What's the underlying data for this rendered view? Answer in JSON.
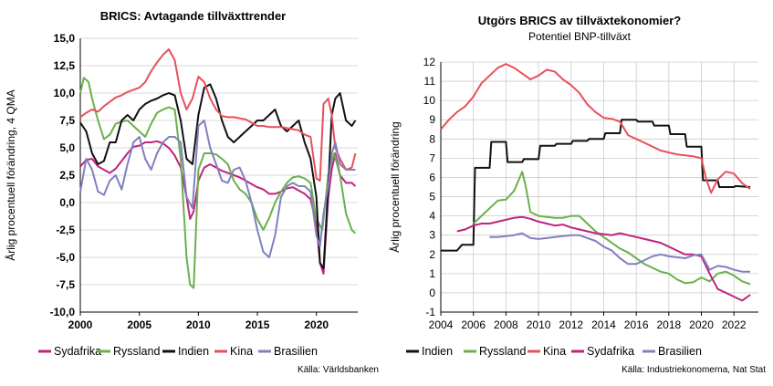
{
  "chart_data": [
    {
      "type": "line",
      "title": "BRICS: Avtagande tillväxttrender",
      "ylabel": "Årlig procentuell förändring, 4 QMA",
      "xlim": [
        2000,
        2023.5
      ],
      "ylim": [
        -10,
        15
      ],
      "x_ticks": [
        "2000",
        "2005",
        "2010",
        "2015",
        "2020"
      ],
      "x_tick_values": [
        2000,
        2005,
        2010,
        2015,
        2020
      ],
      "y_ticks": [
        "15,0",
        "12,5",
        "10,0",
        "7,5",
        "5,0",
        "2,5",
        "0,0",
        "-2,5",
        "-5,0",
        "-7,5",
        "-10,0"
      ],
      "y_tick_values": [
        15,
        12.5,
        10,
        7.5,
        5,
        2.5,
        0,
        -2.5,
        -5,
        -7.5,
        -10
      ],
      "grid": true,
      "legend_position": "bottom",
      "source": "Källa: Världsbanken",
      "series": [
        {
          "name": "Sydafrika",
          "color": "#c0237d",
          "x": [
            2000,
            2000.5,
            2001,
            2001.5,
            2002,
            2002.5,
            2003,
            2003.5,
            2004,
            2004.5,
            2005,
            2005.5,
            2006,
            2006.5,
            2007,
            2007.5,
            2008,
            2008.5,
            2009,
            2009.3,
            2009.6,
            2010,
            2010.5,
            2011,
            2011.5,
            2012,
            2012.5,
            2013,
            2013.5,
            2014,
            2014.5,
            2015,
            2015.5,
            2016,
            2016.5,
            2017,
            2017.5,
            2018,
            2018.5,
            2019,
            2019.5,
            2020,
            2020.3,
            2020.6,
            2021,
            2021.3,
            2021.6,
            2022,
            2022.5,
            2023,
            2023.3
          ],
          "y": [
            3.3,
            3.9,
            4.0,
            3.3,
            3.0,
            2.7,
            3.1,
            3.8,
            4.5,
            5.1,
            5.2,
            5.5,
            5.5,
            5.6,
            5.4,
            5.0,
            4.3,
            3.2,
            0.5,
            -1.5,
            -0.8,
            2.0,
            3.2,
            3.5,
            3.2,
            2.9,
            2.7,
            2.5,
            2.3,
            2.0,
            1.7,
            1.4,
            1.2,
            0.8,
            0.8,
            1.0,
            1.3,
            1.4,
            1.1,
            0.8,
            0.3,
            -2.0,
            -5.5,
            -6.5,
            0.5,
            3.0,
            4.5,
            2.5,
            1.8,
            1.8,
            1.5
          ]
        },
        {
          "name": "Ryssland",
          "color": "#6ab04c",
          "x": [
            2000,
            2000.3,
            2000.7,
            2001,
            2001.5,
            2002,
            2002.5,
            2003,
            2003.5,
            2004,
            2004.5,
            2005,
            2005.5,
            2006,
            2006.5,
            2007,
            2007.5,
            2008,
            2008.5,
            2009,
            2009.3,
            2009.6,
            2010,
            2010.5,
            2011,
            2011.5,
            2012,
            2012.5,
            2013,
            2013.5,
            2014,
            2014.5,
            2015,
            2015.5,
            2016,
            2016.5,
            2017,
            2017.5,
            2018,
            2018.5,
            2019,
            2019.5,
            2020,
            2020.5,
            2021,
            2021.5,
            2022,
            2022.5,
            2023,
            2023.3
          ],
          "y": [
            10.0,
            11.4,
            11.0,
            9.5,
            7.5,
            5.8,
            6.2,
            7.2,
            7.4,
            7.5,
            7.0,
            6.5,
            6.0,
            7.2,
            8.2,
            8.5,
            8.7,
            8.5,
            4.0,
            -5.0,
            -7.5,
            -7.8,
            3.0,
            4.5,
            4.5,
            4.4,
            4.0,
            3.5,
            2.0,
            1.2,
            0.8,
            0.0,
            -1.5,
            -2.5,
            -1.4,
            0.0,
            1.0,
            1.8,
            2.3,
            2.4,
            2.2,
            1.8,
            -1.5,
            -2.5,
            2.5,
            4.5,
            2.5,
            -1.0,
            -2.5,
            -2.8
          ]
        },
        {
          "name": "Indien",
          "color": "#111111",
          "x": [
            2000,
            2000.5,
            2001,
            2001.5,
            2002,
            2002.5,
            2003,
            2003.5,
            2004,
            2004.5,
            2005,
            2005.5,
            2006,
            2006.5,
            2007,
            2007.5,
            2008,
            2008.5,
            2009,
            2009.5,
            2010,
            2010.5,
            2011,
            2011.5,
            2012,
            2012.5,
            2013,
            2013.5,
            2014,
            2014.5,
            2015,
            2015.5,
            2016,
            2016.5,
            2017,
            2017.5,
            2018,
            2018.5,
            2019,
            2019.5,
            2020,
            2020.3,
            2020.6,
            2021,
            2021.3,
            2021.6,
            2022,
            2022.5,
            2023,
            2023.3
          ],
          "y": [
            7.3,
            6.5,
            4.5,
            3.5,
            3.8,
            5.5,
            5.5,
            7.5,
            8.0,
            7.5,
            8.5,
            9.0,
            9.3,
            9.5,
            9.8,
            10.0,
            9.8,
            7.5,
            4.0,
            3.5,
            8.0,
            10.5,
            10.8,
            9.5,
            7.5,
            6.0,
            5.5,
            6.0,
            6.5,
            7.0,
            7.5,
            7.5,
            8.0,
            8.5,
            7.0,
            6.5,
            7.0,
            7.5,
            5.5,
            4.0,
            0.5,
            -5.5,
            -6.0,
            1.5,
            8.0,
            9.5,
            10.0,
            7.5,
            7.0,
            7.5
          ]
        },
        {
          "name": "Kina",
          "color": "#e8505b",
          "x": [
            2000,
            2000.5,
            2001,
            2001.5,
            2002,
            2002.5,
            2003,
            2003.5,
            2004,
            2004.5,
            2005,
            2005.5,
            2006,
            2006.5,
            2007,
            2007.5,
            2008,
            2008.5,
            2009,
            2009.5,
            2010,
            2010.5,
            2011,
            2011.5,
            2012,
            2012.5,
            2013,
            2013.5,
            2014,
            2014.5,
            2015,
            2015.5,
            2016,
            2016.5,
            2017,
            2017.5,
            2018,
            2018.5,
            2019,
            2019.5,
            2020,
            2020.3,
            2020.6,
            2021,
            2021.3,
            2021.6,
            2022,
            2022.5,
            2023,
            2023.3
          ],
          "y": [
            7.8,
            8.2,
            8.5,
            8.3,
            8.8,
            9.2,
            9.6,
            9.8,
            10.1,
            10.3,
            10.5,
            11.0,
            12.0,
            12.8,
            13.5,
            14.0,
            13.0,
            10.0,
            8.5,
            9.5,
            11.5,
            11.0,
            9.5,
            8.5,
            7.9,
            7.8,
            7.8,
            7.7,
            7.6,
            7.3,
            7.0,
            7.0,
            6.9,
            6.9,
            6.9,
            6.8,
            6.7,
            6.6,
            6.2,
            6.0,
            2.2,
            2.0,
            9.0,
            9.5,
            8.0,
            5.0,
            4.0,
            3.0,
            3.2,
            4.5
          ]
        },
        {
          "name": "Brasilien",
          "color": "#8080c0",
          "x": [
            2000,
            2000.5,
            2001,
            2001.5,
            2002,
            2002.5,
            2003,
            2003.5,
            2004,
            2004.5,
            2005,
            2005.5,
            2006,
            2006.5,
            2007,
            2007.5,
            2008,
            2008.5,
            2009,
            2009.5,
            2010,
            2010.5,
            2011,
            2011.5,
            2012,
            2012.5,
            2013,
            2013.5,
            2014,
            2014.5,
            2015,
            2015.5,
            2016,
            2016.5,
            2017,
            2017.5,
            2018,
            2018.5,
            2019,
            2019.5,
            2020,
            2020.3,
            2020.6,
            2021,
            2021.3,
            2021.6,
            2022,
            2022.5,
            2023,
            2023.3
          ],
          "y": [
            1.0,
            4.0,
            3.0,
            1.0,
            0.7,
            2.0,
            2.5,
            1.2,
            3.5,
            5.5,
            6.0,
            4.0,
            3.0,
            4.5,
            5.5,
            6.0,
            6.0,
            5.5,
            0.5,
            -0.5,
            7.0,
            7.5,
            5.0,
            3.5,
            2.0,
            1.8,
            3.0,
            3.2,
            2.0,
            0.0,
            -2.5,
            -4.5,
            -5.0,
            -3.0,
            0.5,
            1.5,
            1.8,
            1.5,
            1.5,
            1.0,
            -3.0,
            -4.0,
            -1.0,
            1.5,
            4.5,
            5.5,
            3.5,
            3.0,
            3.0,
            3.0
          ]
        }
      ]
    },
    {
      "type": "line",
      "title": "Utgörs BRICS av tillväxtekonomier?",
      "subtitle": "Potentiel BNP-tillväxt",
      "ylabel": "Årlig procentuell förändring",
      "xlim": [
        2004,
        2023.5
      ],
      "ylim": [
        -1,
        12
      ],
      "x_ticks": [
        "2004",
        "2006",
        "2008",
        "2010",
        "2012",
        "2014",
        "2016",
        "2018",
        "2020",
        "2022"
      ],
      "x_tick_values": [
        2004,
        2006,
        2008,
        2010,
        2012,
        2014,
        2016,
        2018,
        2020,
        2022
      ],
      "y_ticks": [
        "12",
        "11",
        "10",
        "9",
        "8",
        "7",
        "6",
        "5",
        "4",
        "3",
        "2",
        "1",
        "0",
        "-1"
      ],
      "y_tick_values": [
        12,
        11,
        10,
        9,
        8,
        7,
        6,
        5,
        4,
        3,
        2,
        1,
        0,
        -1
      ],
      "grid": true,
      "legend_position": "bottom",
      "source": "Källa: Industriekonomerna, Nat Stat",
      "series": [
        {
          "name": "Indien",
          "color": "#111111",
          "step": true,
          "x": [
            2004,
            2005,
            2005.3,
            2006,
            2006.1,
            2007,
            2007.1,
            2008,
            2008.1,
            2009,
            2009.1,
            2010,
            2010.1,
            2011,
            2011.1,
            2012,
            2012.1,
            2013,
            2013.1,
            2014,
            2014.1,
            2015,
            2015.1,
            2016,
            2016.1,
            2017,
            2017.1,
            2018,
            2018.1,
            2019,
            2019.1,
            2020,
            2020.1,
            2021,
            2021.1,
            2022,
            2022.1,
            2023
          ],
          "y": [
            2.2,
            2.2,
            2.5,
            2.5,
            6.5,
            6.5,
            7.85,
            7.85,
            6.8,
            6.8,
            6.95,
            6.95,
            7.65,
            7.65,
            7.75,
            7.75,
            7.9,
            7.9,
            8.0,
            8.0,
            8.3,
            8.3,
            9.0,
            9.0,
            8.9,
            8.9,
            8.7,
            8.7,
            8.25,
            8.25,
            7.6,
            7.6,
            5.85,
            5.85,
            5.5,
            5.5,
            5.55,
            5.5
          ]
        },
        {
          "name": "Ryssland",
          "color": "#6ab04c",
          "x": [
            2006,
            2006.5,
            2007,
            2007.5,
            2008,
            2008.5,
            2009,
            2009.2,
            2009.5,
            2010,
            2010.5,
            2011,
            2011.5,
            2012,
            2012.5,
            2013,
            2013.5,
            2014,
            2014.5,
            2015,
            2015.5,
            2016,
            2016.5,
            2017,
            2017.5,
            2018,
            2018.5,
            2019,
            2019.5,
            2020,
            2020.5,
            2021,
            2021.5,
            2022,
            2022.5,
            2023
          ],
          "y": [
            3.6,
            4.0,
            4.4,
            4.8,
            4.85,
            5.3,
            6.3,
            5.6,
            4.2,
            4.0,
            3.95,
            3.9,
            3.9,
            4.0,
            4.0,
            3.6,
            3.2,
            2.9,
            2.6,
            2.3,
            2.1,
            1.8,
            1.5,
            1.3,
            1.1,
            1.0,
            0.7,
            0.5,
            0.55,
            0.8,
            0.6,
            1.0,
            1.1,
            0.9,
            0.6,
            0.45
          ]
        },
        {
          "name": "Kina",
          "color": "#e8505b",
          "x": [
            2004,
            2004.5,
            2005,
            2005.5,
            2006,
            2006.5,
            2007,
            2007.5,
            2008,
            2008.5,
            2009,
            2009.5,
            2010,
            2010.5,
            2011,
            2011.5,
            2012,
            2012.5,
            2013,
            2013.5,
            2014,
            2014.5,
            2015,
            2015.5,
            2016,
            2016.5,
            2017,
            2017.5,
            2018,
            2018.5,
            2019,
            2019.5,
            2020,
            2020.3,
            2020.6,
            2021,
            2021.5,
            2022,
            2022.5,
            2023
          ],
          "y": [
            8.5,
            9.0,
            9.4,
            9.7,
            10.2,
            10.9,
            11.3,
            11.7,
            11.9,
            11.7,
            11.4,
            11.1,
            11.3,
            11.6,
            11.5,
            11.1,
            10.8,
            10.4,
            9.8,
            9.4,
            9.1,
            9.05,
            8.9,
            8.2,
            8.0,
            7.8,
            7.6,
            7.4,
            7.3,
            7.2,
            7.15,
            7.1,
            7.0,
            5.9,
            5.2,
            5.9,
            6.3,
            6.2,
            5.7,
            5.4
          ]
        },
        {
          "name": "Sydafrika",
          "color": "#c0237d",
          "x": [
            2005,
            2005.5,
            2006,
            2006.5,
            2007,
            2007.5,
            2008,
            2008.5,
            2009,
            2009.5,
            2010,
            2010.5,
            2011,
            2011.5,
            2012,
            2012.5,
            2013,
            2013.5,
            2014,
            2014.5,
            2015,
            2015.5,
            2016,
            2016.5,
            2017,
            2017.5,
            2018,
            2018.5,
            2019,
            2019.5,
            2020,
            2020.5,
            2021,
            2021.5,
            2022,
            2022.5,
            2023
          ],
          "y": [
            3.2,
            3.3,
            3.5,
            3.6,
            3.6,
            3.7,
            3.8,
            3.9,
            3.95,
            3.85,
            3.7,
            3.6,
            3.5,
            3.55,
            3.4,
            3.3,
            3.2,
            3.1,
            3.05,
            3.0,
            3.1,
            3.0,
            2.9,
            2.8,
            2.7,
            2.6,
            2.4,
            2.2,
            2.0,
            2.0,
            1.9,
            1.0,
            0.2,
            0.0,
            -0.2,
            -0.4,
            -0.1
          ]
        },
        {
          "name": "Brasilien",
          "color": "#8080c0",
          "x": [
            2007,
            2007.5,
            2008,
            2008.5,
            2009,
            2009.5,
            2010,
            2010.5,
            2011,
            2011.5,
            2012,
            2012.5,
            2013,
            2013.5,
            2014,
            2014.5,
            2015,
            2015.5,
            2016,
            2016.5,
            2017,
            2017.5,
            2018,
            2018.5,
            2019,
            2019.5,
            2020,
            2020.5,
            2021,
            2021.5,
            2022,
            2022.5,
            2023
          ],
          "y": [
            2.9,
            2.9,
            2.95,
            3.0,
            3.1,
            2.85,
            2.8,
            2.85,
            2.9,
            2.95,
            3.0,
            3.0,
            2.85,
            2.7,
            2.4,
            2.2,
            1.8,
            1.5,
            1.5,
            1.7,
            1.9,
            2.0,
            1.9,
            1.85,
            1.8,
            1.95,
            2.0,
            1.2,
            1.4,
            1.35,
            1.2,
            1.1,
            1.1
          ]
        }
      ]
    }
  ]
}
